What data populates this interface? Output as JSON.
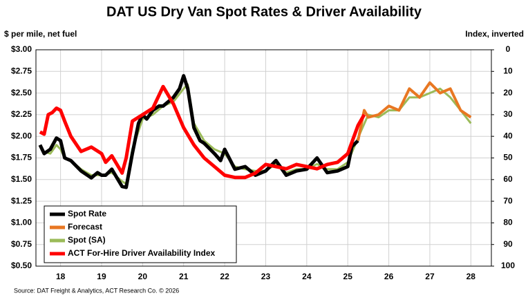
{
  "chart_data": {
    "type": "line",
    "title": "DAT US Dry Van Spot Rates & Driver Availability",
    "y_label": "$ per mile, net fuel",
    "y2_label": "Index, inverted",
    "source": "Source: DAT Freight & Analytics, ACT Research Co. © 2026",
    "xlim": [
      17.9,
      29.0
    ],
    "xticks": [
      {
        "value": 18.5,
        "label": "18"
      },
      {
        "value": 19.5,
        "label": "19"
      },
      {
        "value": 20.5,
        "label": "20"
      },
      {
        "value": 21.5,
        "label": "21"
      },
      {
        "value": 22.5,
        "label": "22"
      },
      {
        "value": 23.5,
        "label": "23"
      },
      {
        "value": 24.5,
        "label": "24"
      },
      {
        "value": 25.5,
        "label": "25"
      },
      {
        "value": 26.5,
        "label": "26"
      },
      {
        "value": 27.5,
        "label": "27"
      },
      {
        "value": 28.5,
        "label": "28"
      }
    ],
    "ylim": [
      0.5,
      3.0
    ],
    "yticks": [
      {
        "value": 0.5,
        "label": "$0.50"
      },
      {
        "value": 0.75,
        "label": "$0.75"
      },
      {
        "value": 1.0,
        "label": "$1.00"
      },
      {
        "value": 1.25,
        "label": "$1.25"
      },
      {
        "value": 1.5,
        "label": "$1.50"
      },
      {
        "value": 1.75,
        "label": "$1.75"
      },
      {
        "value": 2.0,
        "label": "$2.00"
      },
      {
        "value": 2.25,
        "label": "$2.25"
      },
      {
        "value": 2.5,
        "label": "$2.50"
      },
      {
        "value": 2.75,
        "label": "$2.75"
      },
      {
        "value": 3.0,
        "label": "$3.00"
      }
    ],
    "y2lim": [
      100,
      0
    ],
    "y2ticks": [
      0,
      10,
      20,
      30,
      40,
      50,
      60,
      70,
      80,
      90,
      100
    ],
    "grid": true,
    "legend": "lower left",
    "series": [
      {
        "name": "Spot Rate",
        "color": "#000000",
        "width": 5,
        "x": [
          18.0,
          18.1,
          18.25,
          18.4,
          18.5,
          18.6,
          18.75,
          19.0,
          19.25,
          19.4,
          19.5,
          19.6,
          19.75,
          19.9,
          20.0,
          20.1,
          20.25,
          20.4,
          20.5,
          20.6,
          20.75,
          20.9,
          21.0,
          21.25,
          21.4,
          21.5,
          21.6,
          21.75,
          21.9,
          22.0,
          22.25,
          22.4,
          22.5,
          22.75,
          23.0,
          23.25,
          23.5,
          23.75,
          24.0,
          24.25,
          24.5,
          24.75,
          25.0,
          25.25,
          25.5,
          25.6,
          25.75
        ],
        "values": [
          1.9,
          1.8,
          1.85,
          1.98,
          1.95,
          1.75,
          1.72,
          1.6,
          1.52,
          1.58,
          1.55,
          1.55,
          1.62,
          1.5,
          1.42,
          1.41,
          1.8,
          2.15,
          2.25,
          2.2,
          2.3,
          2.35,
          2.35,
          2.45,
          2.55,
          2.7,
          2.55,
          2.1,
          1.95,
          1.92,
          1.8,
          1.72,
          1.85,
          1.62,
          1.65,
          1.55,
          1.6,
          1.72,
          1.55,
          1.6,
          1.62,
          1.75,
          1.58,
          1.6,
          1.65,
          1.88,
          1.95
        ]
      },
      {
        "name": "Forecast",
        "color": "#e87722",
        "width": 4,
        "x": [
          25.75,
          25.9,
          26.0,
          26.25,
          26.5,
          26.75,
          27.0,
          27.25,
          27.5,
          27.75,
          28.0,
          28.25,
          28.5
        ],
        "values": [
          1.95,
          2.3,
          2.22,
          2.25,
          2.35,
          2.3,
          2.55,
          2.45,
          2.62,
          2.5,
          2.55,
          2.3,
          2.22
        ]
      },
      {
        "name": "Spot (SA)",
        "color": "#9bbb59",
        "width": 3,
        "x": [
          18.0,
          18.1,
          18.25,
          18.4,
          18.5,
          18.6,
          18.75,
          19.0,
          19.25,
          19.5,
          19.75,
          20.0,
          20.1,
          20.25,
          20.5,
          20.75,
          21.0,
          21.25,
          21.5,
          21.6,
          21.75,
          22.0,
          22.25,
          22.5,
          22.75,
          23.0,
          23.25,
          23.5,
          23.75,
          24.0,
          24.25,
          24.5,
          24.75,
          25.0,
          25.25,
          25.5,
          25.75,
          26.0,
          26.25,
          26.5,
          26.75,
          27.0,
          27.25,
          27.5,
          27.75,
          28.0,
          28.25,
          28.5
        ],
        "values": [
          1.88,
          1.82,
          1.8,
          1.9,
          1.85,
          1.75,
          1.72,
          1.62,
          1.55,
          1.55,
          1.58,
          1.48,
          1.45,
          1.85,
          2.2,
          2.25,
          2.35,
          2.4,
          2.55,
          2.6,
          2.15,
          1.95,
          1.85,
          1.8,
          1.65,
          1.62,
          1.6,
          1.6,
          1.68,
          1.58,
          1.62,
          1.62,
          1.68,
          1.62,
          1.62,
          1.7,
          1.98,
          2.25,
          2.22,
          2.3,
          2.3,
          2.45,
          2.45,
          2.5,
          2.55,
          2.45,
          2.3,
          2.15
        ]
      },
      {
        "name": "ACT For-Hire Driver Availability Index",
        "color": "#ff0000",
        "width": 5,
        "axis": "y2",
        "x": [
          18.0,
          18.1,
          18.2,
          18.3,
          18.4,
          18.5,
          18.6,
          18.75,
          19.0,
          19.25,
          19.5,
          19.6,
          19.75,
          20.0,
          20.1,
          20.25,
          20.5,
          20.75,
          21.0,
          21.25,
          21.5,
          21.75,
          22.0,
          22.25,
          22.5,
          22.75,
          23.0,
          23.25,
          23.5,
          23.75,
          24.0,
          24.25,
          24.5,
          24.75,
          25.0,
          25.25,
          25.5,
          25.75,
          25.9
        ],
        "values": [
          38,
          39,
          30,
          29,
          27,
          28,
          33,
          40,
          47,
          45,
          48,
          52,
          49,
          57,
          50,
          33,
          30,
          27,
          17,
          25,
          36,
          44,
          50,
          54,
          58,
          59,
          59,
          57,
          53,
          54,
          55,
          53,
          54,
          55,
          53,
          52,
          48,
          35,
          30
        ]
      }
    ]
  }
}
